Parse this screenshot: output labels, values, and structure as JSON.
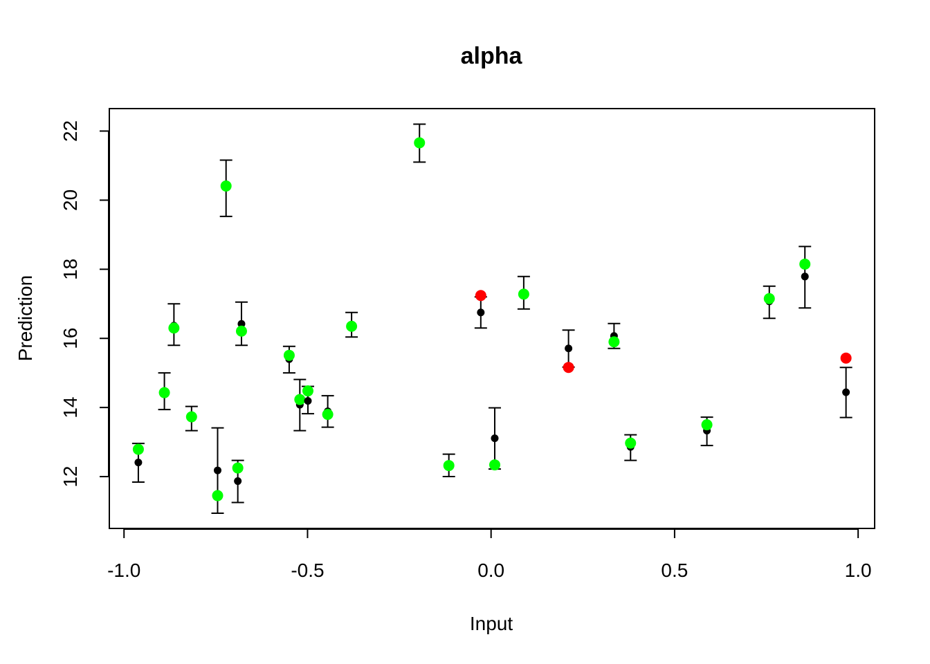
{
  "chart_data": {
    "type": "scatter",
    "title": "alpha",
    "xlabel": "Input",
    "ylabel": "Prediction",
    "xlim": [
      -1.04,
      1.045
    ],
    "ylim": [
      10.5,
      22.65
    ],
    "xticks": [
      -1.0,
      -0.5,
      0.0,
      0.5,
      1.0
    ],
    "xtick_labels": [
      "-1.0",
      "-0.5",
      "0.0",
      "0.5",
      "1.0"
    ],
    "yticks": [
      12,
      14,
      16,
      18,
      20,
      22
    ],
    "ytick_labels": [
      "12",
      "14",
      "16",
      "18",
      "20",
      "22"
    ],
    "grid": false,
    "legend": "none",
    "colors": {
      "prediction": "#000000",
      "actual_in": "#00ff00",
      "actual_out": "#ff0000",
      "error_bar": "#000000"
    },
    "points": [
      {
        "x": -0.961,
        "pred": 12.41,
        "lower": 11.84,
        "upper": 12.96,
        "actual": 12.79,
        "in_interval": true
      },
      {
        "x": -0.89,
        "pred": 14.43,
        "lower": 13.94,
        "upper": 15.0,
        "actual": 14.43,
        "in_interval": true
      },
      {
        "x": -0.864,
        "pred": 16.37,
        "lower": 15.8,
        "upper": 17.0,
        "actual": 16.3,
        "in_interval": true
      },
      {
        "x": -0.816,
        "pred": 13.73,
        "lower": 13.33,
        "upper": 14.03,
        "actual": 13.73,
        "in_interval": true
      },
      {
        "x": -0.745,
        "pred": 12.18,
        "lower": 10.94,
        "upper": 13.41,
        "actual": 11.45,
        "in_interval": true
      },
      {
        "x": -0.722,
        "pred": 20.41,
        "lower": 19.53,
        "upper": 21.16,
        "actual": 20.41,
        "in_interval": true
      },
      {
        "x": -0.69,
        "pred": 11.87,
        "lower": 11.25,
        "upper": 12.47,
        "actual": 12.25,
        "in_interval": true
      },
      {
        "x": -0.68,
        "pred": 16.42,
        "lower": 15.8,
        "upper": 17.05,
        "actual": 16.21,
        "in_interval": true
      },
      {
        "x": -0.55,
        "pred": 15.4,
        "lower": 15.0,
        "upper": 15.77,
        "actual": 15.51,
        "in_interval": true
      },
      {
        "x": -0.521,
        "pred": 14.08,
        "lower": 13.33,
        "upper": 14.81,
        "actual": 14.23,
        "in_interval": true
      },
      {
        "x": -0.499,
        "pred": 14.19,
        "lower": 13.82,
        "upper": 14.61,
        "actual": 14.48,
        "in_interval": true
      },
      {
        "x": -0.445,
        "pred": 13.89,
        "lower": 13.43,
        "upper": 14.34,
        "actual": 13.8,
        "in_interval": true
      },
      {
        "x": -0.38,
        "pred": 16.4,
        "lower": 16.04,
        "upper": 16.75,
        "actual": 16.35,
        "in_interval": true
      },
      {
        "x": -0.195,
        "pred": 21.66,
        "lower": 21.1,
        "upper": 22.2,
        "actual": 21.66,
        "in_interval": true
      },
      {
        "x": -0.115,
        "pred": 12.34,
        "lower": 12.0,
        "upper": 12.65,
        "actual": 12.32,
        "in_interval": true
      },
      {
        "x": -0.028,
        "pred": 16.75,
        "lower": 16.3,
        "upper": 17.2,
        "actual": 17.24,
        "in_interval": false
      },
      {
        "x": 0.01,
        "pred": 13.11,
        "lower": 12.22,
        "upper": 13.99,
        "actual": 12.34,
        "in_interval": true
      },
      {
        "x": 0.089,
        "pred": 17.25,
        "lower": 16.85,
        "upper": 17.79,
        "actual": 17.28,
        "in_interval": true
      },
      {
        "x": 0.211,
        "pred": 15.71,
        "lower": 15.17,
        "upper": 16.24,
        "actual": 15.16,
        "in_interval": false
      },
      {
        "x": 0.335,
        "pred": 16.07,
        "lower": 15.71,
        "upper": 16.43,
        "actual": 15.9,
        "in_interval": true
      },
      {
        "x": 0.38,
        "pred": 12.86,
        "lower": 12.47,
        "upper": 13.21,
        "actual": 12.97,
        "in_interval": true
      },
      {
        "x": 0.588,
        "pred": 13.33,
        "lower": 12.9,
        "upper": 13.72,
        "actual": 13.5,
        "in_interval": true
      },
      {
        "x": 0.758,
        "pred": 17.07,
        "lower": 16.58,
        "upper": 17.51,
        "actual": 17.15,
        "in_interval": true
      },
      {
        "x": 0.855,
        "pred": 17.79,
        "lower": 16.88,
        "upper": 18.66,
        "actual": 18.15,
        "in_interval": true
      },
      {
        "x": 0.967,
        "pred": 14.44,
        "lower": 13.71,
        "upper": 15.16,
        "actual": 15.43,
        "in_interval": false
      }
    ]
  }
}
